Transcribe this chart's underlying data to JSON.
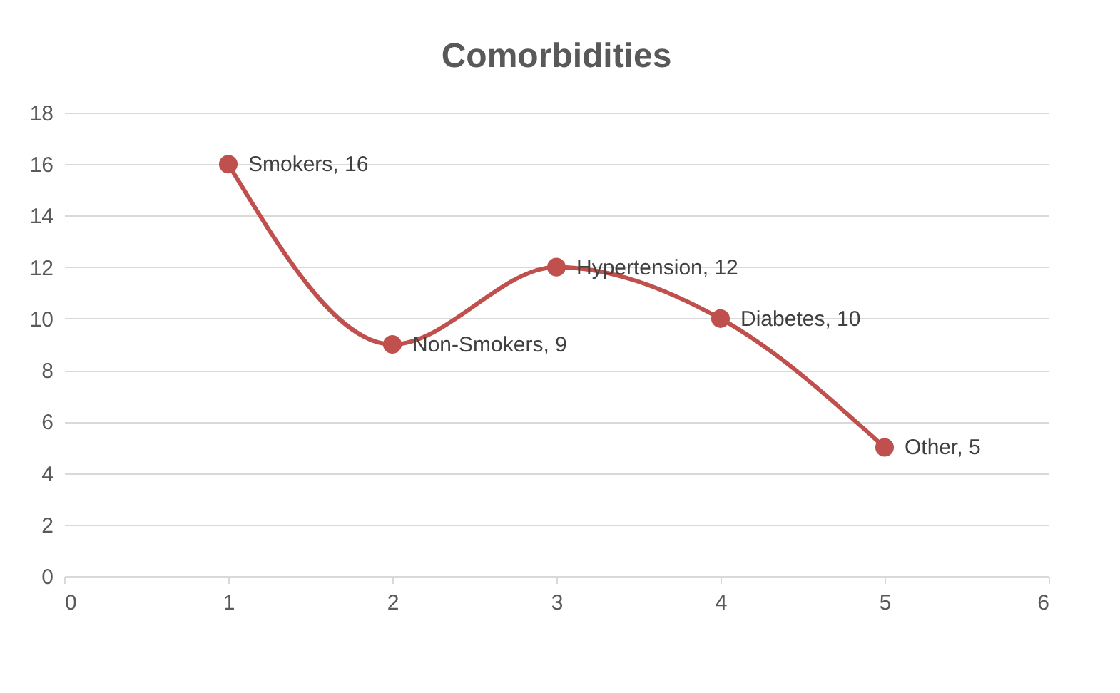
{
  "chart_data": {
    "type": "line",
    "title": "Comorbidities",
    "x": [
      1,
      2,
      3,
      4,
      5
    ],
    "series": [
      {
        "color": "#c0504d",
        "values": [
          16,
          9,
          12,
          10,
          5
        ],
        "value_labels": [
          "Smokers, 16",
          "Non-Smokers, 9",
          "Hypertension, 12",
          "Diabetes, 10",
          "Other, 5"
        ]
      }
    ],
    "xlim": [
      0,
      6
    ],
    "xticks": [
      0,
      1,
      2,
      3,
      4,
      5,
      6
    ],
    "ylim": [
      0,
      18
    ],
    "yticks": [
      0,
      2,
      4,
      6,
      8,
      10,
      12,
      14,
      16,
      18
    ],
    "grid": "y",
    "marker": "circle",
    "line_style": "solid"
  }
}
